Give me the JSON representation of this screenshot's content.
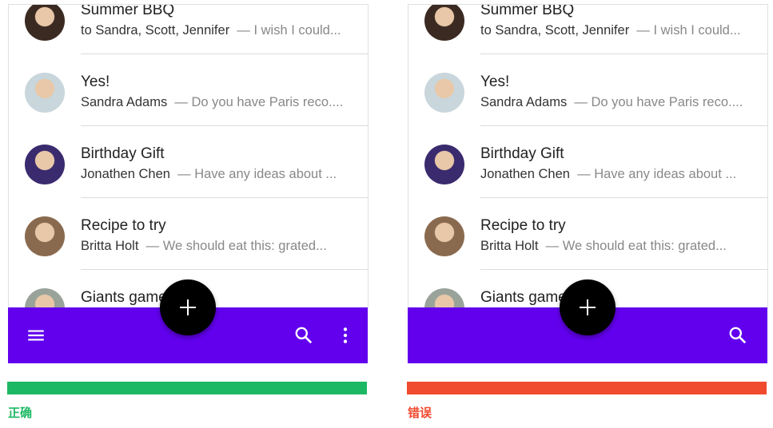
{
  "colors": {
    "app_bar": "#6200ee",
    "fab": "#000000",
    "correct": "#1db864",
    "wrong": "#f04a2f"
  },
  "emails": [
    {
      "title": "Summer BBQ",
      "sender": "to Sandra, Scott, Jennifer",
      "preview": "— I wish I could...",
      "avatar_color": "#3b2a22"
    },
    {
      "title": "Yes!",
      "sender": "Sandra Adams",
      "preview": "— Do you have Paris reco....",
      "avatar_color": "#c9d6dc"
    },
    {
      "title": "Birthday Gift",
      "sender": "Jonathen Chen",
      "preview": "— Have any ideas about ...",
      "avatar_color": "#3a2a6e"
    },
    {
      "title": "Recipe to try",
      "sender": "Britta Holt",
      "preview": "— We should eat this: grated...",
      "avatar_color": "#8a6a4f"
    },
    {
      "title": "Giants game",
      "sender": "",
      "preview": "",
      "avatar_color": "#9aa39a"
    }
  ],
  "panels": [
    {
      "verdict": "正确",
      "verdict_color": "#1db864",
      "icons": [
        "menu-icon",
        "search-icon",
        "more-vert-icon"
      ]
    },
    {
      "verdict": "错误",
      "verdict_color": "#f04a2f",
      "icons": [
        "search-icon"
      ]
    }
  ]
}
